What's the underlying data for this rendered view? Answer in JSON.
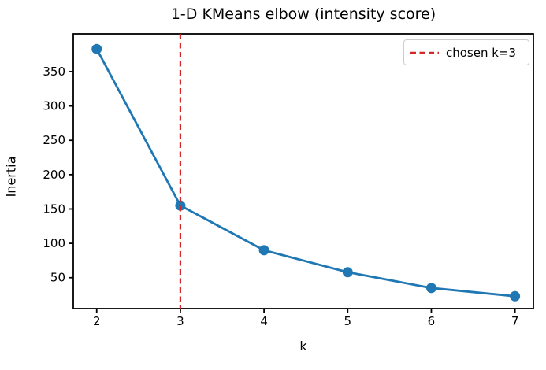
{
  "figure": {
    "background": "#ffffff"
  },
  "chart_data": {
    "type": "line",
    "title": "1-D KMeans elbow (intensity score)",
    "xlabel": "k",
    "ylabel": "Inertia",
    "x": [
      2,
      3,
      4,
      5,
      6,
      7
    ],
    "series": [
      {
        "name": "inertia",
        "values": [
          383,
          155,
          90,
          58,
          35,
          23
        ],
        "color": "#1f77b4",
        "marker": "circle",
        "line_width": 2.8,
        "marker_radius": 6.5
      }
    ],
    "xticks": [
      2,
      3,
      4,
      5,
      6,
      7
    ],
    "yticks": [
      50,
      100,
      150,
      200,
      250,
      300,
      350
    ],
    "xlim": [
      1.72,
      7.22
    ],
    "ylim": [
      5,
      405
    ],
    "grid": false,
    "vline": {
      "x": 3,
      "color": "#d62728",
      "style": "dashed",
      "label": "chosen k=3"
    },
    "legend": {
      "position": "upper right",
      "entries": [
        {
          "label": "chosen k=3",
          "color": "#d62728",
          "style": "dashed"
        }
      ]
    },
    "colors": {
      "line": "#1f77b4",
      "vline": "#d62728",
      "axis": "#000000",
      "tick_label": "#000000",
      "legend_border": "#cccccc"
    }
  }
}
